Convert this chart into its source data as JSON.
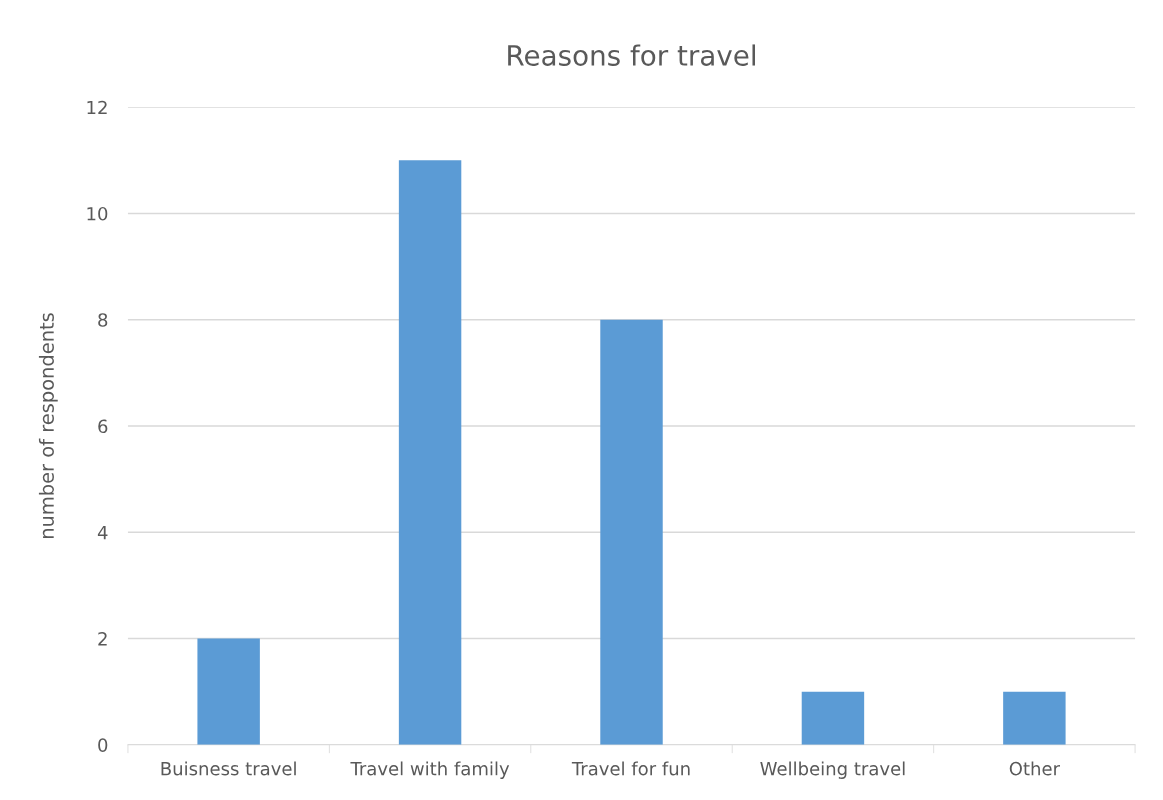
{
  "chart_data": {
    "type": "bar",
    "title": "Reasons for travel",
    "ylabel": "number of respondents",
    "categories": [
      "Buisness travel",
      "Travel with family",
      "Travel for fun",
      "Wellbeing travel",
      "Other"
    ],
    "values": [
      2,
      11,
      8,
      1,
      1
    ],
    "color": "#5b9bd5",
    "ylim": [
      0,
      12
    ],
    "yticks": [
      0,
      2,
      4,
      6,
      8,
      10,
      12
    ],
    "grid": "y",
    "legend": false
  }
}
